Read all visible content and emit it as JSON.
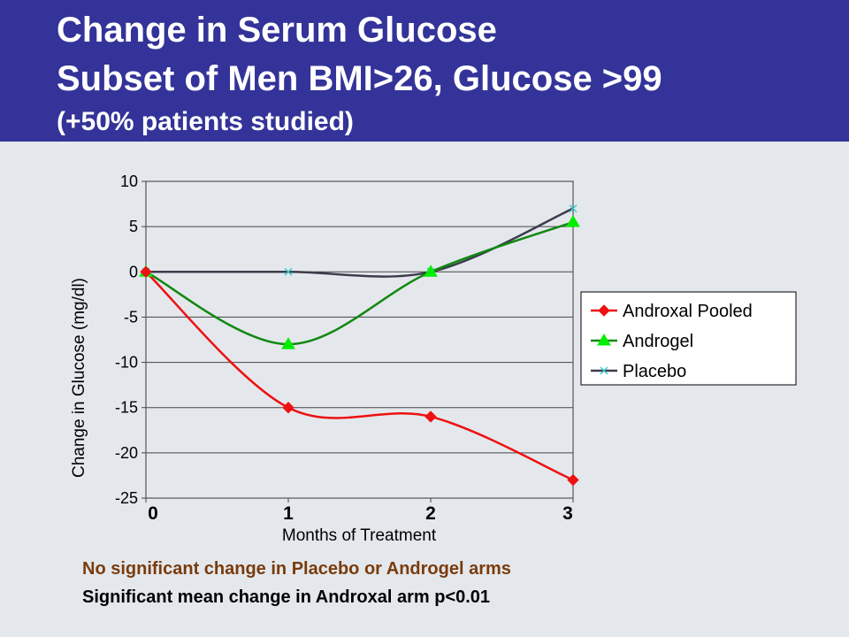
{
  "header": {
    "title_line1": "Change in Serum Glucose",
    "title_line2": "Subset of Men BMI>26, Glucose >99",
    "title_line3": "(+50% patients studied)",
    "background_color": "#333399"
  },
  "chart_data": {
    "type": "line",
    "x": [
      0,
      1,
      2,
      3
    ],
    "xlabel": "Months of Treatment",
    "ylabel": "Change in Glucose (mg/dl)",
    "xlim": [
      0,
      3
    ],
    "ylim": [
      -25,
      10
    ],
    "x_ticks": [
      "0",
      "1",
      "2",
      "3"
    ],
    "y_ticks": [
      "10",
      "5",
      "0",
      "-5",
      "-10",
      "-15",
      "-20",
      "-25"
    ],
    "y_tick_values": [
      10,
      5,
      0,
      -5,
      -10,
      -15,
      -20,
      -25
    ],
    "grid": true,
    "legend_position": "right",
    "series": [
      {
        "name": "Androxal Pooled",
        "values": [
          0,
          -15,
          -16,
          -23
        ],
        "color": "#ee1111",
        "marker": "diamond"
      },
      {
        "name": "Androgel",
        "values": [
          0,
          -8,
          0,
          5.5
        ],
        "color": "#118811",
        "marker_color": "#00ee00",
        "marker": "triangle"
      },
      {
        "name": "Placebo",
        "values": [
          0,
          0,
          0,
          7
        ],
        "color": "#3c3c4c",
        "marker_color": "#33cccc",
        "marker": "x"
      }
    ]
  },
  "notes": {
    "line1": "No significant change in Placebo or Androgel arms",
    "line2": "Significant mean change in Androxal arm p<0.01"
  }
}
